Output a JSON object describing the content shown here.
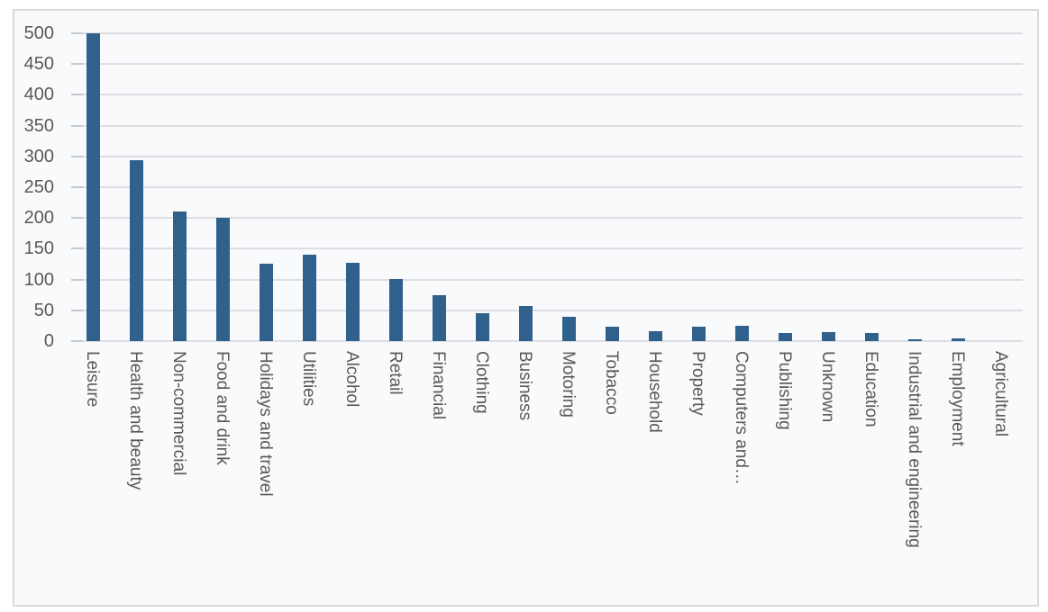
{
  "chart_data": {
    "type": "bar",
    "title": "",
    "xlabel": "",
    "ylabel": "",
    "categories": [
      "Leisure",
      "Health and beauty",
      "Non-commercial",
      "Food and drink",
      "Holidays and travel",
      "Utilities",
      "Alcohol",
      "Retail",
      "Financial",
      "Clothing",
      "Business",
      "Motoring",
      "Tobacco",
      "Household",
      "Property",
      "Computers and…",
      "Publishing",
      "Unknown",
      "Education",
      "Industrial and engineering",
      "Employment",
      "Agricultural"
    ],
    "values": [
      500,
      294,
      211,
      201,
      125,
      141,
      127,
      101,
      75,
      45,
      57,
      39,
      23,
      16,
      23,
      25,
      13,
      15,
      13,
      3,
      5,
      0
    ],
    "ylim": [
      0,
      500
    ],
    "yticks": [
      0,
      50,
      100,
      150,
      200,
      250,
      300,
      350,
      400,
      450,
      500
    ],
    "grid": true,
    "legend": false,
    "colors": {
      "bar": "#2f618c",
      "gridline": "#dcdee1",
      "tick": "#c6cacd",
      "axis_text": "#595959",
      "chart_background": "#f8fafc",
      "frame_border": "#d9dadc",
      "page_background": "#ffffff"
    }
  }
}
